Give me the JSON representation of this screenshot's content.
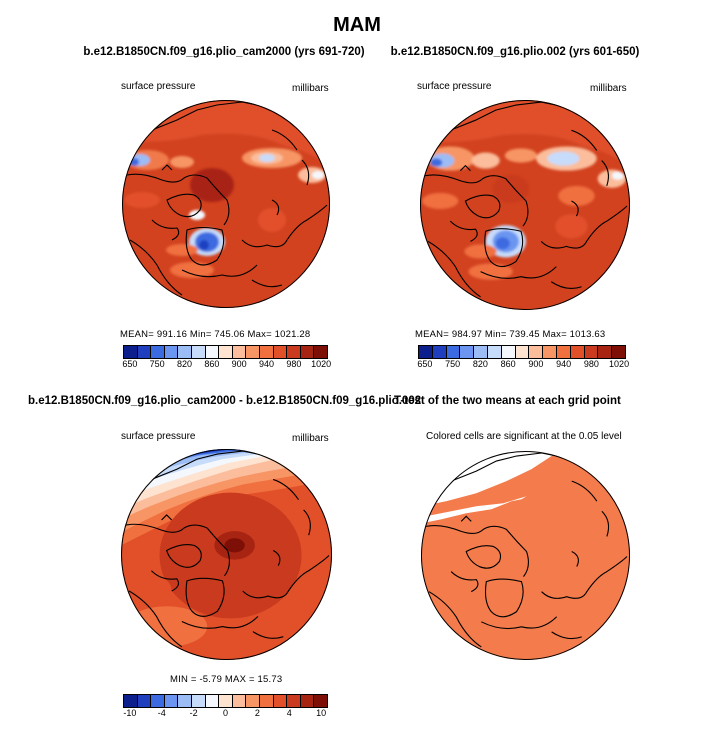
{
  "main_title": "MAM",
  "panels": {
    "p1": {
      "title": "b.e12.B1850CN.f09_g16.plio_cam2000 (yrs 691-720)",
      "left_label": "surface pressure",
      "right_label": "millibars",
      "stats": "MEAN= 991.16   Min= 745.06   Max= 1021.28"
    },
    "p2": {
      "title": "b.e12.B1850CN.f09_g16.plio.002 (yrs 601-650)",
      "left_label": "surface pressure",
      "right_label": "millibars",
      "stats": "MEAN= 984.97   Min= 739.45   Max= 1013.63"
    },
    "p3": {
      "title": "b.e12.B1850CN.f09_g16.plio_cam2000 - b.e12.B1850CN.f09_g16.plio.002",
      "left_label": "surface pressure",
      "right_label": "millibars",
      "stats": "MIN =   -5.79  MAX =   15.73"
    },
    "p4": {
      "title": "T-test of the two means at each grid point",
      "subtitle": "Colored cells are significant at the 0.05 level"
    }
  },
  "colorbars": {
    "abs": {
      "colors": [
        "#0d1f8c",
        "#1f3fbf",
        "#3c6ae0",
        "#6b95f0",
        "#9cbcf5",
        "#c7dcfa",
        "#f4f8fd",
        "#fde3d0",
        "#fbbd9b",
        "#f79565",
        "#f0703f",
        "#e2502a",
        "#c93a1e",
        "#a82412",
        "#7e0f06"
      ],
      "labels": [
        "650",
        "750",
        "820",
        "860",
        "900",
        "940",
        "980",
        "1020"
      ]
    },
    "diff": {
      "colors": [
        "#0d1f8c",
        "#1f3fbf",
        "#3c6ae0",
        "#6b95f0",
        "#9cbcf5",
        "#c7dcfa",
        "#f4f8fd",
        "#fde3d0",
        "#fbbd9b",
        "#f79565",
        "#f0703f",
        "#e2502a",
        "#c93a1e",
        "#a82412",
        "#7e0f06"
      ],
      "labels": [
        "-10",
        "-4",
        "-2",
        "0",
        "2",
        "4",
        "10"
      ]
    }
  }
}
